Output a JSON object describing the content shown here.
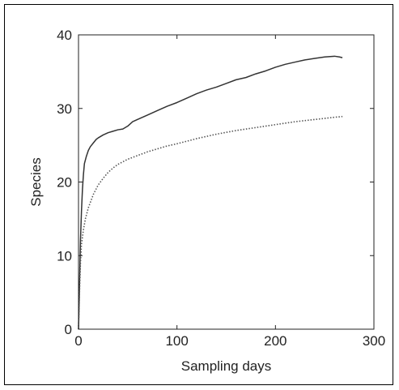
{
  "chart_data": {
    "type": "line",
    "title": "",
    "xlabel": "Sampling days",
    "ylabel": "Species",
    "xlim": [
      0,
      300
    ],
    "ylim": [
      0,
      40
    ],
    "xticks": [
      0,
      100,
      200,
      300
    ],
    "yticks": [
      0,
      10,
      20,
      30,
      40
    ],
    "grid": false,
    "legend": "none",
    "series": [
      {
        "style": "solid",
        "color": "#333333",
        "x": [
          0,
          1,
          2,
          3,
          4,
          5,
          6,
          8,
          10,
          12,
          15,
          18,
          20,
          25,
          30,
          35,
          40,
          45,
          50,
          55,
          60,
          70,
          80,
          90,
          100,
          110,
          120,
          130,
          140,
          150,
          160,
          170,
          180,
          190,
          200,
          210,
          220,
          230,
          240,
          250,
          260,
          265,
          268
        ],
        "y": [
          0,
          6,
          12,
          16,
          19,
          21,
          22.5,
          23.5,
          24.3,
          24.8,
          25.3,
          25.8,
          26,
          26.4,
          26.7,
          26.9,
          27.1,
          27.2,
          27.6,
          28.2,
          28.5,
          29.1,
          29.7,
          30.3,
          30.8,
          31.4,
          32,
          32.5,
          32.9,
          33.4,
          33.9,
          34.2,
          34.7,
          35.1,
          35.6,
          36,
          36.3,
          36.6,
          36.8,
          37,
          37.1,
          37,
          36.9
        ]
      },
      {
        "style": "dotted",
        "color": "#555555",
        "x": [
          0,
          1,
          2,
          3,
          5,
          7,
          10,
          15,
          20,
          25,
          30,
          35,
          40,
          50,
          60,
          70,
          80,
          90,
          100,
          120,
          140,
          160,
          180,
          200,
          220,
          240,
          260,
          268
        ],
        "y": [
          0,
          5,
          9,
          11.5,
          13.5,
          15,
          16.5,
          18.3,
          19.6,
          20.5,
          21.3,
          21.9,
          22.4,
          23.1,
          23.6,
          24.1,
          24.5,
          24.9,
          25.2,
          25.9,
          26.5,
          27,
          27.4,
          27.8,
          28.2,
          28.5,
          28.8,
          28.9
        ]
      }
    ]
  }
}
